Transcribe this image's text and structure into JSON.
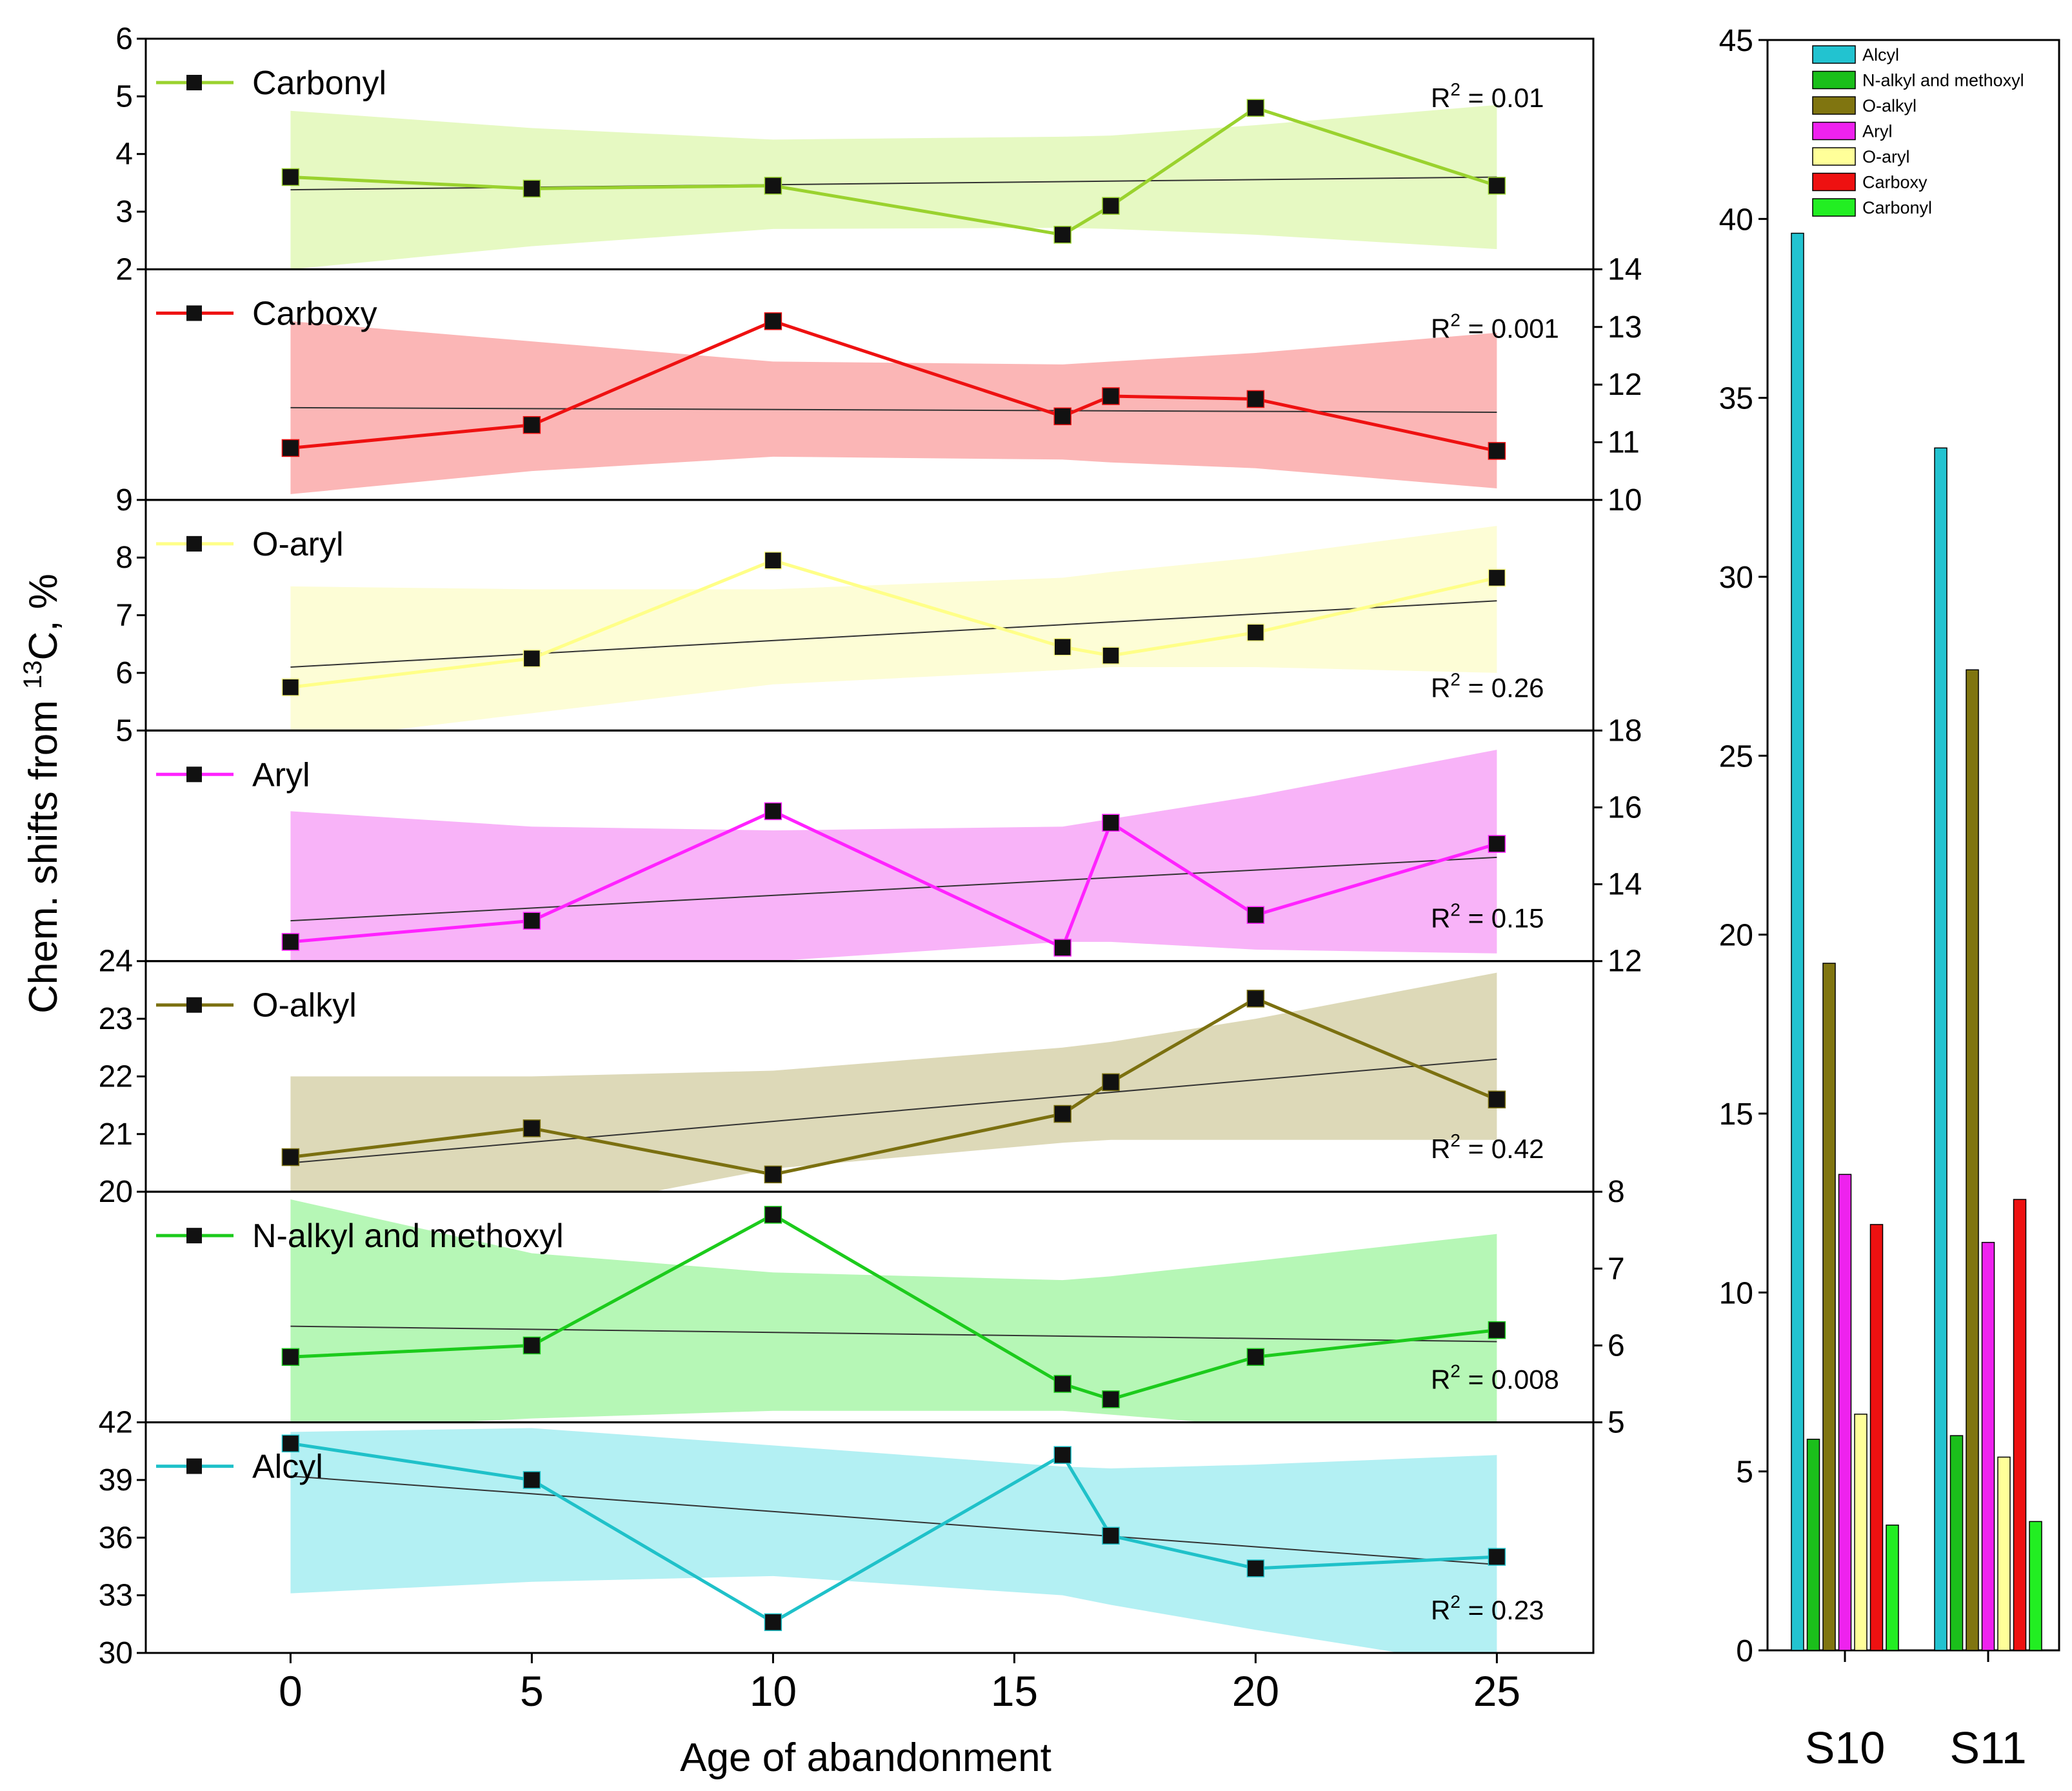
{
  "chart_data": [
    {
      "type": "line",
      "title": "",
      "xlabel": "Age of abandonment",
      "ylabel": "Chem. shifts from 13C, %",
      "ylabel_parts": {
        "pre": "Chem. shifts from ",
        "sup": "13",
        "post": "C, %"
      },
      "xlim": [
        -3,
        27
      ],
      "x_ticks": [
        0,
        5,
        10,
        15,
        20,
        25
      ],
      "x": [
        0,
        5,
        10,
        16,
        17,
        20,
        25
      ],
      "series": [
        {
          "name": "Carbonyl",
          "color": "#9ad22e",
          "band": "#e6f9c2",
          "axis": "left",
          "ylim": [
            2,
            6
          ],
          "ticks": [
            2,
            3,
            4,
            5,
            6
          ],
          "values": [
            3.6,
            3.4,
            3.45,
            2.6,
            3.1,
            4.8,
            3.45
          ],
          "fit": [
            3.38,
            3.6
          ],
          "band_upper": [
            4.75,
            4.45,
            4.25,
            4.3,
            4.32,
            4.5,
            4.85
          ],
          "band_lower": [
            2.0,
            2.4,
            2.7,
            2.72,
            2.7,
            2.6,
            2.35
          ],
          "r2_label": "R",
          "r2_value": " = 0.01"
        },
        {
          "name": "Carboxy",
          "color": "#ee1111",
          "band": "#fbb6b6",
          "axis": "right",
          "ylim": [
            10,
            14
          ],
          "ticks": [
            10,
            11,
            12,
            13,
            14
          ],
          "left_tick_label": "9",
          "values": [
            10.9,
            11.3,
            13.1,
            11.45,
            11.8,
            11.75,
            10.85
          ],
          "fit": [
            11.6,
            11.52
          ],
          "band_upper": [
            13.1,
            12.75,
            12.4,
            12.35,
            12.4,
            12.55,
            12.9
          ],
          "band_lower": [
            10.1,
            10.5,
            10.75,
            10.7,
            10.65,
            10.55,
            10.2
          ],
          "r2_label": "R",
          "r2_value": " = 0.001"
        },
        {
          "name": "O-aryl",
          "color": "#ffff88",
          "band": "#fdfdd6",
          "axis": "left",
          "ylim": [
            5,
            9
          ],
          "ticks": [
            5,
            6,
            7,
            8
          ],
          "values": [
            5.75,
            6.25,
            7.95,
            6.45,
            6.3,
            6.7,
            7.65
          ],
          "fit": [
            6.1,
            7.25
          ],
          "band_upper": [
            7.5,
            7.45,
            7.45,
            7.65,
            7.75,
            8.0,
            8.55
          ],
          "band_lower": [
            4.8,
            5.3,
            5.8,
            6.05,
            6.1,
            6.1,
            6.0
          ],
          "r2_label": "R",
          "r2_value": " = 0.26"
        },
        {
          "name": "Aryl",
          "color": "#ff22ff",
          "band": "#f8b3f8",
          "axis": "right",
          "ylim": [
            12,
            18
          ],
          "ticks": [
            12,
            14,
            16,
            18
          ],
          "values": [
            12.5,
            13.05,
            15.9,
            12.35,
            15.6,
            13.2,
            15.05
          ],
          "fit": [
            13.05,
            14.7
          ],
          "band_upper": [
            15.9,
            15.5,
            15.4,
            15.5,
            15.7,
            16.3,
            17.5
          ],
          "band_lower": [
            10.2,
            11.2,
            12.0,
            12.5,
            12.5,
            12.3,
            12.2
          ],
          "r2_label": "R",
          "r2_value": " = 0.15"
        },
        {
          "name": "O-alkyl",
          "color": "#7b7010",
          "band": "#ddd9b8",
          "axis": "left",
          "ylim": [
            20,
            24
          ],
          "ticks": [
            20,
            21,
            22,
            23,
            24
          ],
          "values": [
            20.6,
            21.1,
            20.3,
            21.35,
            21.9,
            23.35,
            21.6
          ],
          "fit": [
            20.5,
            22.3
          ],
          "band_upper": [
            22.0,
            22.0,
            22.1,
            22.5,
            22.6,
            23.0,
            23.8
          ],
          "band_lower": [
            19.0,
            19.6,
            20.4,
            20.85,
            20.9,
            20.9,
            20.9
          ],
          "r2_label": "R",
          "r2_value": " = 0.42"
        },
        {
          "name": "N-alkyl and methoxyl",
          "color": "#1ccb1c",
          "band": "#b6f7b6",
          "axis": "right",
          "ylim": [
            5,
            8
          ],
          "ticks": [
            5,
            6,
            7,
            8
          ],
          "values": [
            5.85,
            6.0,
            7.7,
            5.5,
            5.3,
            5.85,
            6.2
          ],
          "fit": [
            6.25,
            6.05
          ],
          "band_upper": [
            7.9,
            7.2,
            6.95,
            6.85,
            6.9,
            7.1,
            7.45
          ],
          "band_lower": [
            4.9,
            5.05,
            5.15,
            5.15,
            5.1,
            4.95,
            4.75
          ],
          "r2_label": "R",
          "r2_value": " = 0.008"
        },
        {
          "name": "Alcyl",
          "color": "#1fc1c9",
          "band": "#b3f0f3",
          "axis": "left",
          "ylim": [
            30,
            42
          ],
          "ticks": [
            30,
            33,
            36,
            39,
            42
          ],
          "values": [
            40.9,
            39.0,
            31.6,
            40.3,
            36.1,
            34.4,
            35.0
          ],
          "fit": [
            39.2,
            34.6
          ],
          "band_upper": [
            41.5,
            41.7,
            40.8,
            39.7,
            39.6,
            39.8,
            40.3
          ],
          "band_lower": [
            33.1,
            33.7,
            34.0,
            33.0,
            32.5,
            31.2,
            29.2
          ],
          "r2_label": "R",
          "r2_value": " = 0.23"
        }
      ]
    },
    {
      "type": "bar",
      "title": "",
      "xlabel": "",
      "ylabel": "",
      "ylim": [
        0,
        45
      ],
      "y_ticks": [
        0,
        5,
        10,
        15,
        20,
        25,
        30,
        35,
        40,
        45
      ],
      "categories": [
        "S10",
        "S11"
      ],
      "series": [
        {
          "name": "Alcyl",
          "color": "#22c3d0",
          "values": [
            39.6,
            33.6
          ]
        },
        {
          "name": "N-alkyl and methoxyl",
          "color": "#1bbf1b",
          "values": [
            5.9,
            6.0
          ]
        },
        {
          "name": "O-alkyl",
          "color": "#807510",
          "values": [
            19.2,
            27.4
          ]
        },
        {
          "name": "Aryl",
          "color": "#ee22ee",
          "values": [
            13.3,
            11.4
          ]
        },
        {
          "name": "O-aryl",
          "color": "#ffff99",
          "values": [
            6.6,
            5.4
          ]
        },
        {
          "name": "Carboxy",
          "color": "#ee1111",
          "values": [
            11.9,
            12.6
          ]
        },
        {
          "name": "Carbonyl",
          "color": "#22ee22",
          "values": [
            3.5,
            3.6
          ]
        }
      ]
    }
  ]
}
